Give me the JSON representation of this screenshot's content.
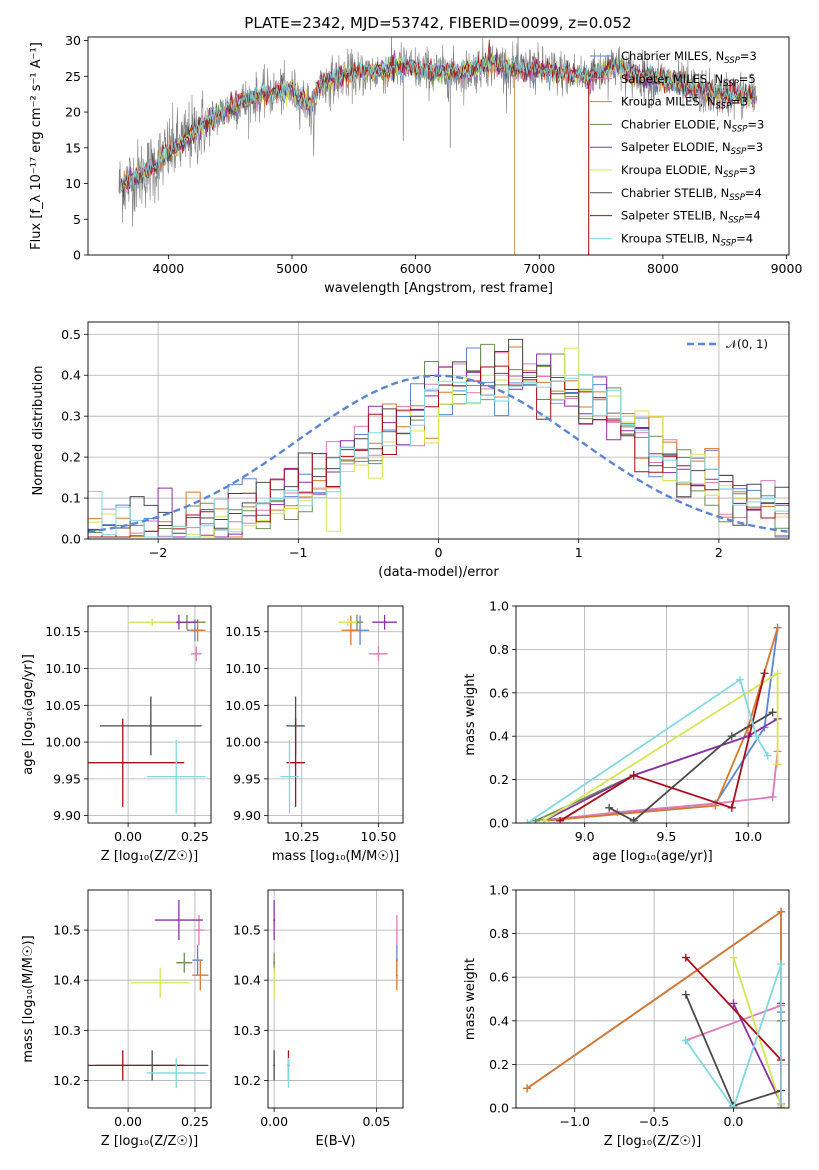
{
  "figure": {
    "title": "PLATE=2342, MJD=53742, FIBERID=0099, z=0.052"
  },
  "colors": {
    "Chabrier MILES": "#5b86d6",
    "Salpeter MILES": "#e07ab8",
    "Kroupa MILES": "#d8782e",
    "Chabrier ELODIE": "#6f8f52",
    "Salpeter ELODIE": "#8a30a6",
    "Kroupa ELODIE": "#d6e652",
    "Chabrier STELIB": "#4a4a4a",
    "Salpeter STELIB": "#a80f18",
    "Kroupa STELIB": "#82d8e0"
  },
  "chart_data": [
    {
      "id": "spectrum",
      "type": "line",
      "title": "PLATE=2342, MJD=53742, FIBERID=0099, z=0.052",
      "xlabel": "wavelength [Angstrom, rest frame]",
      "ylabel": "Flux [f_λ 10⁻¹⁷ erg cm⁻² s⁻¹ A⁻¹]",
      "xlim": [
        3350,
        9020
      ],
      "ylim": [
        0,
        30.5
      ],
      "xticks": [
        4000,
        5000,
        6000,
        7000,
        8000,
        9000
      ],
      "yticks": [
        0,
        5,
        10,
        15,
        20,
        25,
        30
      ],
      "legend_position": "right",
      "legend": [
        {
          "name": "Chabrier MILES",
          "nssp": "3"
        },
        {
          "name": "Salpeter MILES",
          "nssp": "5"
        },
        {
          "name": "Kroupa MILES",
          "nssp": "3"
        },
        {
          "name": "Chabrier ELODIE",
          "nssp": "3"
        },
        {
          "name": "Salpeter ELODIE",
          "nssp": "3"
        },
        {
          "name": "Kroupa ELODIE",
          "nssp": "3"
        },
        {
          "name": "Chabrier STELIB",
          "nssp": "4"
        },
        {
          "name": "Salpeter STELIB",
          "nssp": "4"
        },
        {
          "name": "Kroupa STELIB",
          "nssp": "4"
        }
      ],
      "data_envelope": {
        "wavelength": [
          3600,
          3700,
          3800,
          3900,
          4000,
          4100,
          4200,
          4300,
          4400,
          4500,
          4600,
          4800,
          5000,
          5150,
          5200,
          5400,
          5600,
          5800,
          5900,
          6000,
          6200,
          6400,
          6600,
          6800,
          7000,
          7200,
          7400,
          7600,
          7800,
          8000,
          8200,
          8400,
          8600,
          8750
        ],
        "flux": [
          9.5,
          10.5,
          11.5,
          12.5,
          14.5,
          15.5,
          17.0,
          18.5,
          19.5,
          20.5,
          21.5,
          22.5,
          23.0,
          21.0,
          23.5,
          25.0,
          25.5,
          26.0,
          26.5,
          26.0,
          25.5,
          25.5,
          27.0,
          26.0,
          26.0,
          25.5,
          25.0,
          26.5,
          25.0,
          24.5,
          23.5,
          22.5,
          22.5,
          22.0
        ]
      }
    },
    {
      "id": "residual_hist",
      "type": "histogram",
      "xlabel": "(data-model)/error",
      "ylabel": "Normed distribution",
      "xlim": [
        -2.5,
        2.5
      ],
      "ylim": [
        0,
        0.53
      ],
      "xticks": [
        -2,
        -1,
        0,
        1,
        2
      ],
      "yticks": [
        0.0,
        0.1,
        0.2,
        0.3,
        0.4,
        0.5
      ],
      "reference_curve": {
        "name": "𝒩(0, 1)",
        "mean": 0,
        "sigma": 1
      },
      "legend_position": "top-right",
      "bins": 50,
      "series_peaks": [
        {
          "model": "Chabrier MILES",
          "center": 0.45
        },
        {
          "model": "Salpeter MILES",
          "center": 0.5
        },
        {
          "model": "Kroupa MILES",
          "center": 0.55
        },
        {
          "model": "Chabrier ELODIE",
          "center": 0.5
        },
        {
          "model": "Salpeter ELODIE",
          "center": 0.5
        },
        {
          "model": "Kroupa ELODIE",
          "center": 0.65
        },
        {
          "model": "Chabrier STELIB",
          "center": 0.4
        },
        {
          "model": "Salpeter STELIB",
          "center": 0.45
        },
        {
          "model": "Kroupa STELIB",
          "center": 0.55
        }
      ]
    },
    {
      "id": "age_vs_Z",
      "type": "scatter",
      "xlabel": "Z [log₁₀(Z/Z☉)]",
      "ylabel": "age [log₁₀(age/yr)]",
      "xlim": [
        -0.15,
        0.31
      ],
      "ylim": [
        9.89,
        10.185
      ],
      "xticks": [
        0.0,
        0.25
      ],
      "yticks": [
        9.9,
        9.95,
        10.0,
        10.05,
        10.1,
        10.15
      ],
      "points": [
        {
          "model": "Chabrier MILES",
          "x": 0.25,
          "y": 10.152,
          "xerr": 0.03,
          "yerr": 0.015
        },
        {
          "model": "Salpeter MILES",
          "x": 0.255,
          "y": 10.12,
          "xerr": 0.02,
          "yerr": 0.01
        },
        {
          "model": "Kroupa MILES",
          "x": 0.26,
          "y": 10.152,
          "xerr": 0.03,
          "yerr": 0.015
        },
        {
          "model": "Chabrier ELODIE",
          "x": 0.22,
          "y": 10.163,
          "xerr": 0.07,
          "yerr": 0.01
        },
        {
          "model": "Salpeter ELODIE",
          "x": 0.19,
          "y": 10.163,
          "xerr": 0.07,
          "yerr": 0.01
        },
        {
          "model": "Kroupa ELODIE",
          "x": 0.09,
          "y": 10.163,
          "xerr": 0.09,
          "yerr": 0.005
        },
        {
          "model": "Chabrier STELIB",
          "x": 0.085,
          "y": 10.022,
          "xerr": 0.19,
          "yerr": 0.04
        },
        {
          "model": "Salpeter STELIB",
          "x": -0.02,
          "y": 9.972,
          "xerr": 0.23,
          "yerr": 0.06
        },
        {
          "model": "Kroupa STELIB",
          "x": 0.18,
          "y": 9.953,
          "xerr": 0.11,
          "yerr": 0.05
        }
      ]
    },
    {
      "id": "age_vs_mass",
      "type": "scatter",
      "xlabel": "mass [log₁₀(M/M☉)]",
      "ylabel": "",
      "xlim": [
        10.14,
        10.58
      ],
      "ylim": [
        9.89,
        10.185
      ],
      "xticks": [
        10.25,
        10.5
      ],
      "yticks": [
        9.9,
        9.95,
        10.0,
        10.05,
        10.1,
        10.15
      ],
      "points": [
        {
          "model": "Chabrier MILES",
          "x": 10.44,
          "y": 10.152,
          "xerr": 0.03,
          "yerr": 0.02
        },
        {
          "model": "Salpeter MILES",
          "x": 10.5,
          "y": 10.12,
          "xerr": 0.03,
          "yerr": 0.01
        },
        {
          "model": "Kroupa MILES",
          "x": 10.41,
          "y": 10.152,
          "xerr": 0.03,
          "yerr": 0.02
        },
        {
          "model": "Chabrier ELODIE",
          "x": 10.43,
          "y": 10.163,
          "xerr": 0.02,
          "yerr": 0.01
        },
        {
          "model": "Salpeter ELODIE",
          "x": 10.52,
          "y": 10.163,
          "xerr": 0.04,
          "yerr": 0.01
        },
        {
          "model": "Kroupa ELODIE",
          "x": 10.4,
          "y": 10.163,
          "xerr": 0.03,
          "yerr": 0.005
        },
        {
          "model": "Chabrier STELIB",
          "x": 10.23,
          "y": 10.022,
          "xerr": 0.03,
          "yerr": 0.04
        },
        {
          "model": "Salpeter STELIB",
          "x": 10.23,
          "y": 9.972,
          "xerr": 0.03,
          "yerr": 0.06
        },
        {
          "model": "Kroupa STELIB",
          "x": 10.21,
          "y": 9.953,
          "xerr": 0.03,
          "yerr": 0.05
        }
      ]
    },
    {
      "id": "mass_weight_vs_age",
      "type": "line",
      "xlabel": "age [log₁₀(age/yr)]",
      "ylabel": "mass weight",
      "xlim": [
        8.58,
        10.25
      ],
      "ylim": [
        0,
        1.0
      ],
      "xticks": [
        9.0,
        9.5,
        10.0
      ],
      "yticks": [
        0.0,
        0.2,
        0.4,
        0.6,
        0.8,
        1.0
      ],
      "series": [
        {
          "model": "Chabrier MILES",
          "x": [
            8.7,
            9.8,
            10.1,
            10.18
          ],
          "y": [
            0.01,
            0.09,
            0.44,
            0.9
          ]
        },
        {
          "model": "Salpeter MILES",
          "x": [
            8.75,
            9.2,
            9.8,
            10.15,
            10.18
          ],
          "y": [
            0.01,
            0.05,
            0.09,
            0.12,
            0.33
          ]
        },
        {
          "model": "Kroupa MILES",
          "x": [
            8.75,
            9.8,
            10.0,
            10.18
          ],
          "y": [
            0.01,
            0.08,
            0.44,
            0.9
          ]
        },
        {
          "model": "Chabrier ELODIE",
          "x": [
            8.7,
            9.3,
            10.0
          ],
          "y": [
            0.01,
            0.22,
            0.4
          ]
        },
        {
          "model": "Salpeter ELODIE",
          "x": [
            8.75,
            9.3,
            10.0,
            10.18
          ],
          "y": [
            0.01,
            0.22,
            0.4,
            0.48
          ]
        },
        {
          "model": "Kroupa ELODIE",
          "x": [
            8.75,
            10.18,
            10.18
          ],
          "y": [
            0.01,
            0.69,
            0.27
          ]
        },
        {
          "model": "Chabrier STELIB",
          "x": [
            9.15,
            9.3,
            9.9,
            10.15
          ],
          "y": [
            0.07,
            0.01,
            0.4,
            0.51
          ]
        },
        {
          "model": "Salpeter STELIB",
          "x": [
            8.85,
            9.3,
            9.9,
            10.1
          ],
          "y": [
            0.01,
            0.22,
            0.07,
            0.69
          ]
        },
        {
          "model": "Kroupa STELIB",
          "x": [
            8.65,
            9.95,
            10.05,
            10.12
          ],
          "y": [
            0.0,
            0.66,
            0.4,
            0.31
          ]
        }
      ]
    },
    {
      "id": "mass_vs_Z",
      "type": "scatter",
      "xlabel": "Z [log₁₀(Z/Z☉)]",
      "ylabel": "mass [log₁₀(M/M☉)]",
      "xlim": [
        -0.15,
        0.31
      ],
      "ylim": [
        10.145,
        10.58
      ],
      "xticks": [
        0.0,
        0.25
      ],
      "yticks": [
        10.2,
        10.3,
        10.4,
        10.5
      ],
      "points": [
        {
          "model": "Chabrier MILES",
          "x": 0.26,
          "y": 10.44,
          "xerr": 0.02,
          "yerr": 0.03
        },
        {
          "model": "Salpeter MILES",
          "x": 0.265,
          "y": 10.5,
          "xerr": 0.02,
          "yerr": 0.03
        },
        {
          "model": "Kroupa MILES",
          "x": 0.27,
          "y": 10.41,
          "xerr": 0.03,
          "yerr": 0.03
        },
        {
          "model": "Chabrier ELODIE",
          "x": 0.21,
          "y": 10.435,
          "xerr": 0.03,
          "yerr": 0.02
        },
        {
          "model": "Salpeter ELODIE",
          "x": 0.19,
          "y": 10.52,
          "xerr": 0.09,
          "yerr": 0.04
        },
        {
          "model": "Kroupa ELODIE",
          "x": 0.12,
          "y": 10.395,
          "xerr": 0.11,
          "yerr": 0.03
        },
        {
          "model": "Chabrier STELIB",
          "x": 0.09,
          "y": 10.23,
          "xerr": 0.21,
          "yerr": 0.03
        },
        {
          "model": "Salpeter STELIB",
          "x": -0.02,
          "y": 10.23,
          "xerr": 0.23,
          "yerr": 0.03
        },
        {
          "model": "Kroupa STELIB",
          "x": 0.18,
          "y": 10.215,
          "xerr": 0.11,
          "yerr": 0.03
        }
      ]
    },
    {
      "id": "mass_vs_EBV",
      "type": "scatter",
      "xlabel": "E(B-V)",
      "ylabel": "",
      "xlim": [
        -0.003,
        0.063
      ],
      "ylim": [
        10.145,
        10.58
      ],
      "xticks": [
        0.0,
        0.05
      ],
      "yticks": [
        10.2,
        10.3,
        10.4,
        10.5
      ],
      "points": [
        {
          "model": "Chabrier MILES",
          "x": 0.06,
          "y": 10.44,
          "yerr": 0.03
        },
        {
          "model": "Salpeter MILES",
          "x": 0.06,
          "y": 10.5,
          "yerr": 0.03
        },
        {
          "model": "Kroupa MILES",
          "x": 0.06,
          "y": 10.41,
          "yerr": 0.03
        },
        {
          "model": "Chabrier ELODIE",
          "x": 0.0,
          "y": 10.435,
          "yerr": 0.02
        },
        {
          "model": "Salpeter ELODIE",
          "x": 0.0,
          "y": 10.52,
          "yerr": 0.04
        },
        {
          "model": "Kroupa ELODIE",
          "x": 0.0,
          "y": 10.395,
          "yerr": 0.03
        },
        {
          "model": "Chabrier STELIB",
          "x": 0.0,
          "y": 10.23,
          "yerr": 0.03
        },
        {
          "model": "Salpeter STELIB",
          "x": 0.007,
          "y": 10.23,
          "yerr": 0.03
        },
        {
          "model": "Kroupa STELIB",
          "x": 0.007,
          "y": 10.215,
          "yerr": 0.03
        }
      ]
    },
    {
      "id": "mass_weight_vs_Z",
      "type": "line",
      "xlabel": "Z [log₁₀(Z/Z☉)]",
      "ylabel": "mass weight",
      "xlim": [
        -1.37,
        0.35
      ],
      "ylim": [
        0,
        1.0
      ],
      "xticks": [
        -1.0,
        -0.5,
        0.0
      ],
      "yticks": [
        0.0,
        0.2,
        0.4,
        0.6,
        0.8,
        1.0
      ],
      "series": [
        {
          "model": "Chabrier MILES",
          "x": [
            -1.3,
            0.3,
            0.3
          ],
          "y": [
            0.09,
            0.9,
            0.44
          ]
        },
        {
          "model": "Salpeter MILES",
          "x": [
            -0.3,
            0.3
          ],
          "y": [
            0.31,
            0.47
          ]
        },
        {
          "model": "Kroupa MILES",
          "x": [
            -1.3,
            0.3,
            0.3
          ],
          "y": [
            0.09,
            0.9,
            0.02
          ]
        },
        {
          "model": "Chabrier ELODIE",
          "x": [
            0.3,
            0.3
          ],
          "y": [
            0.0,
            0.4
          ]
        },
        {
          "model": "Salpeter ELODIE",
          "x": [
            0.0,
            0.3,
            0.3
          ],
          "y": [
            0.48,
            0.02,
            0.48
          ]
        },
        {
          "model": "Kroupa ELODIE",
          "x": [
            0.0,
            0.3
          ],
          "y": [
            0.69,
            0.01
          ]
        },
        {
          "model": "Chabrier STELIB",
          "x": [
            -0.3,
            0.0,
            0.3
          ],
          "y": [
            0.52,
            0.01,
            0.08
          ]
        },
        {
          "model": "Salpeter STELIB",
          "x": [
            -0.3,
            0.3,
            0.3
          ],
          "y": [
            0.69,
            0.22,
            0.0
          ]
        },
        {
          "model": "Kroupa STELIB",
          "x": [
            -0.3,
            0.0,
            0.3,
            0.3
          ],
          "y": [
            0.31,
            0.0,
            0.66,
            0.02
          ]
        }
      ]
    }
  ]
}
